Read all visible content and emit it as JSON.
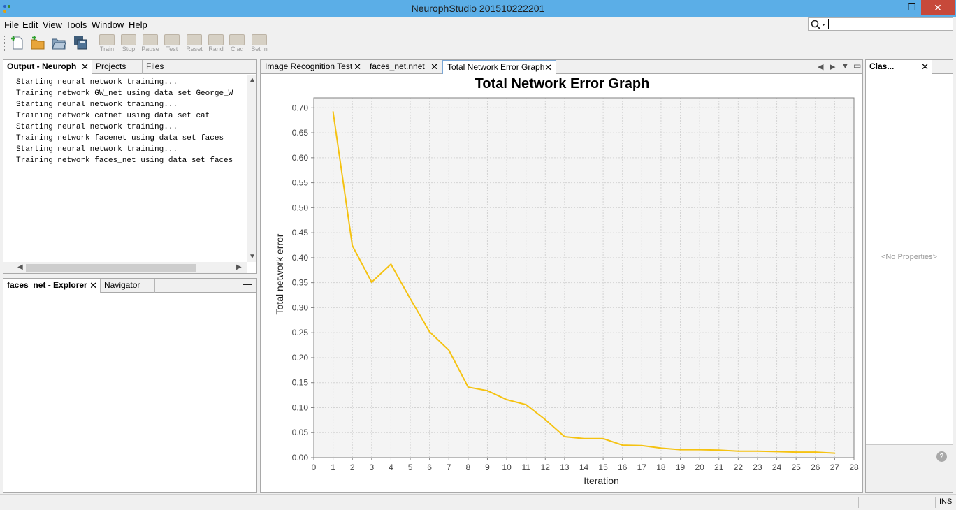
{
  "window": {
    "title": "NeurophStudio 201510222201",
    "minimize": "—",
    "maximize": "❐",
    "close": "✕"
  },
  "menu": [
    {
      "label": "File",
      "mnemonic": "F",
      "rest": "ile"
    },
    {
      "label": "Edit",
      "mnemonic": "E",
      "rest": "dit"
    },
    {
      "label": "View",
      "mnemonic": "V",
      "rest": "iew"
    },
    {
      "label": "Tools",
      "mnemonic": "T",
      "rest": "ools"
    },
    {
      "label": "Window",
      "mnemonic": "W",
      "rest": "indow"
    },
    {
      "label": "Help",
      "mnemonic": "H",
      "rest": "elp"
    }
  ],
  "search": {
    "value": "",
    "icon": "search-icon"
  },
  "toolbar": {
    "buttons": [
      "Train",
      "Stop",
      "Pause",
      "Test",
      "Reset",
      "Rand",
      "Clac",
      "Set In"
    ]
  },
  "output_panel": {
    "tabs": [
      "Output - Neuroph",
      "Projects",
      "Files"
    ],
    "lines": [
      "Starting neural network training...",
      "Training network GW_net using data set George_W",
      "Starting neural network training...",
      "Training network catnet using data set cat",
      "Starting neural network training...",
      "Training network facenet using data set faces",
      "Starting neural network training...",
      "Training network faces_net using data set faces"
    ]
  },
  "explorer_panel": {
    "tabs": [
      "faces_net - Explorer",
      "Navigator"
    ]
  },
  "graph_panel": {
    "tabs": [
      "Image Recognition Test",
      "faces_net.nnet",
      "Total Network Error Graph"
    ]
  },
  "props_panel": {
    "tab": "Clas...",
    "empty_text": "<No Properties>",
    "help": "?"
  },
  "status": {
    "ins": "INS"
  },
  "chart_data": {
    "type": "line",
    "title": "Total Network Error Graph",
    "xlabel": "Iteration",
    "ylabel": "Total network error",
    "xlim": [
      0,
      28
    ],
    "ylim": [
      0,
      0.72
    ],
    "xticks": [
      "0",
      "1",
      "2",
      "3",
      "4",
      "5",
      "6",
      "7",
      "8",
      "9",
      "10",
      "11",
      "12",
      "13",
      "14",
      "15",
      "16",
      "17",
      "18",
      "19",
      "20",
      "21",
      "22",
      "23",
      "24",
      "25",
      "26",
      "27",
      "28"
    ],
    "yticks": [
      "0.00",
      "0.05",
      "0.10",
      "0.15",
      "0.20",
      "0.25",
      "0.30",
      "0.35",
      "0.40",
      "0.45",
      "0.50",
      "0.55",
      "0.60",
      "0.65",
      "0.70"
    ],
    "grid": true,
    "line_color": "#f5c211",
    "series": [
      {
        "x": [
          1,
          2,
          3,
          4,
          5,
          6,
          7,
          8,
          9,
          10,
          11,
          12,
          13,
          14,
          15,
          16,
          17,
          18,
          19,
          20,
          21,
          22,
          23,
          24,
          25,
          26,
          27
        ],
        "y": [
          0.692,
          0.424,
          0.351,
          0.387,
          0.318,
          0.252,
          0.215,
          0.141,
          0.134,
          0.116,
          0.106,
          0.076,
          0.042,
          0.038,
          0.038,
          0.025,
          0.024,
          0.019,
          0.016,
          0.016,
          0.015,
          0.013,
          0.013,
          0.012,
          0.011,
          0.011,
          0.009
        ]
      }
    ]
  }
}
